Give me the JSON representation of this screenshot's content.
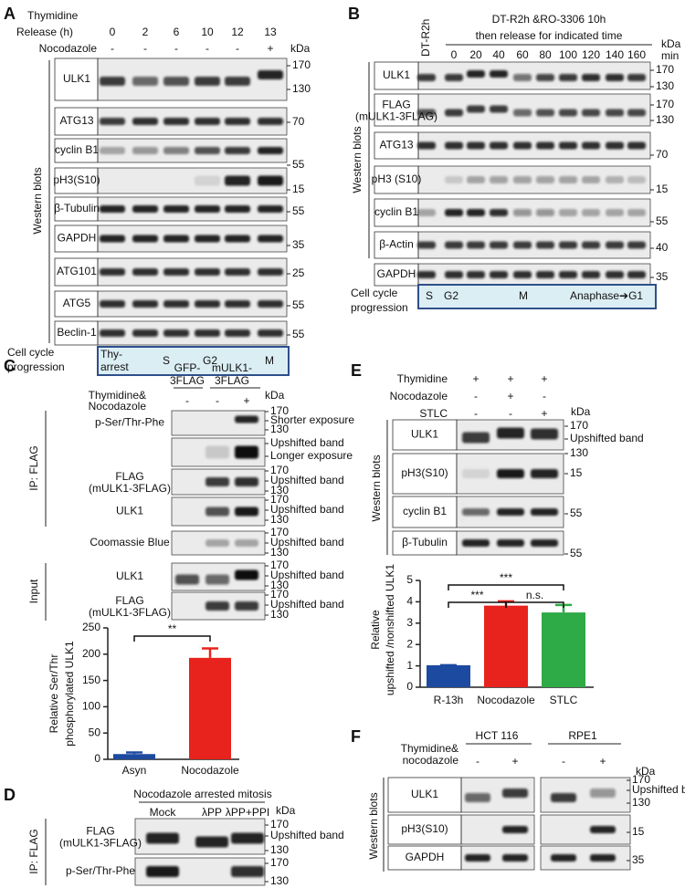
{
  "figure": {
    "A": {
      "letter": "A",
      "header": [
        "Thymidine",
        "Release (h)"
      ],
      "times": [
        "0",
        "2",
        "6",
        "10",
        "12",
        "13"
      ],
      "treatment": "Nocodazole",
      "marks": [
        "-",
        "-",
        "-",
        "-",
        "-",
        "+"
      ],
      "kda": "kDa",
      "side_title": "Western blots",
      "rows": [
        {
          "label": "ULK1",
          "side": [
            "170",
            "130"
          ]
        },
        {
          "label": "ATG13",
          "side": [
            "70"
          ]
        },
        {
          "label": "cyclin B1",
          "side": [
            "55"
          ]
        },
        {
          "label": "pH3(S10)",
          "side": [
            "15"
          ]
        },
        {
          "label": "β-Tubulin",
          "side": [
            "55"
          ]
        },
        {
          "label": "GAPDH",
          "side": [
            "35"
          ]
        },
        {
          "label": "ATG101",
          "side": [
            "25"
          ]
        },
        {
          "label": "ATG5",
          "side": [
            "55"
          ]
        },
        {
          "label": "Beclin-1",
          "side": [
            "55"
          ]
        }
      ],
      "progression": {
        "label": [
          "Cell cycle",
          "progression"
        ],
        "stages": [
          [
            "Thy-",
            "arrest"
          ],
          [
            "S"
          ],
          [
            "G2"
          ],
          [
            "M"
          ]
        ]
      }
    },
    "B": {
      "letter": "B",
      "control": "DT-R2h",
      "header": [
        "DT-R2h &RO-3306 10h",
        "then release for indicated time"
      ],
      "times": [
        "0",
        "20",
        "40",
        "60",
        "80",
        "100",
        "120",
        "140",
        "160"
      ],
      "unit": "min",
      "kda": "kDa",
      "side_title": "Western blots",
      "rows": [
        {
          "label": "ULK1",
          "side": [
            "170",
            "130"
          ]
        },
        {
          "label": "FLAG",
          "sublabel": "(mULK1-3FLAG)",
          "side": [
            "170",
            "130"
          ]
        },
        {
          "label": "ATG13",
          "side": [
            "70"
          ]
        },
        {
          "label": "pH3 (S10)",
          "side": [
            "15"
          ]
        },
        {
          "label": "cyclin B1",
          "side": [
            "55"
          ]
        },
        {
          "label": "β-Actin",
          "side": [
            "40"
          ]
        },
        {
          "label": "GAPDH",
          "side": [
            "35"
          ]
        }
      ],
      "progression": {
        "label": [
          "Cell cycle",
          "progression"
        ],
        "stages": [
          [
            "S"
          ],
          [
            "G2"
          ],
          [
            "M"
          ],
          [
            "Anaphase➔G1"
          ]
        ]
      }
    },
    "C": {
      "letter": "C",
      "groups": [
        [
          "GFP-",
          "3FLAG"
        ],
        [
          "mULK1-",
          "3FLAG"
        ]
      ],
      "treatment": [
        "Thymidine&",
        "Nocodazole"
      ],
      "marks": [
        "-",
        "-",
        "+"
      ],
      "kda": "kDa",
      "sections": [
        "IP: FLAG",
        "Input"
      ],
      "rows": [
        {
          "label": "p-Ser/Thr-Phe",
          "side": [
            "170",
            "Shorter exposure",
            "130"
          ]
        },
        {
          "side": [
            "Upshifted band",
            "Longer exposure"
          ]
        },
        {
          "label": "FLAG",
          "sublabel": "(mULK1-3FLAG)",
          "side": [
            "170",
            "Upshifted band",
            "130"
          ]
        },
        {
          "label": "ULK1",
          "side": [
            "170",
            "Upshifted band",
            "130"
          ]
        },
        {
          "label": "Coomassie Blue",
          "side": [
            "170",
            "Upshifted band",
            "130"
          ]
        },
        {
          "label": "ULK1",
          "side": [
            "170",
            "Upshifted band",
            "130"
          ]
        },
        {
          "label": "FLAG",
          "sublabel": "(mULK1-3FLAG)",
          "side": [
            "170",
            "Upshifted band",
            "130"
          ]
        }
      ]
    },
    "D": {
      "letter": "D",
      "header": "Nocodazole arrested mitosis",
      "lanes": [
        "Mock",
        "λPP",
        "λPP+PPI"
      ],
      "kda": "kDa",
      "section": "IP: FLAG",
      "rows": [
        {
          "label": "FLAG",
          "sublabel": "(mULK1-3FLAG)",
          "side": [
            "170",
            "Upshifted band",
            "130"
          ]
        },
        {
          "label": "p-Ser/Thr-Phe",
          "side": [
            "170",
            "130"
          ]
        }
      ]
    },
    "E": {
      "letter": "E",
      "treatments": [
        {
          "name": "Thymidine",
          "marks": [
            "+",
            "+",
            "+"
          ]
        },
        {
          "name": "Nocodazole",
          "marks": [
            "-",
            "+",
            "-"
          ]
        },
        {
          "name": "STLC",
          "marks": [
            "-",
            "-",
            "+"
          ]
        }
      ],
      "kda": "kDa",
      "side_title": "Western blots",
      "rows": [
        {
          "label": "ULK1",
          "side": [
            "170",
            "Upshifted band",
            "130"
          ]
        },
        {
          "label": "pH3(S10)",
          "side": [
            "15"
          ]
        },
        {
          "label": "cyclin B1",
          "side": [
            "55"
          ]
        },
        {
          "label": "β-Tubulin",
          "side": [
            "55"
          ]
        }
      ]
    },
    "F": {
      "letter": "F",
      "groups": [
        "HCT 116",
        "RPE1"
      ],
      "treatment": [
        "Thymidine&",
        "nocodazole"
      ],
      "marks": [
        "-",
        "+",
        "-",
        "+"
      ],
      "kda": "kDa",
      "side_title": "Western blots",
      "rows": [
        {
          "label": "ULK1",
          "side": [
            "170",
            "Upshifted band",
            "130"
          ]
        },
        {
          "label": "pH3(S10)",
          "side": [
            "15"
          ]
        },
        {
          "label": "GAPDH",
          "side": [
            "35"
          ]
        }
      ]
    }
  },
  "chart_data": [
    {
      "type": "bar",
      "y_label": [
        "Relative Ser/Thr",
        "phosphorylated ULK1"
      ],
      "categories": [
        "Asyn",
        "Nocodazole"
      ],
      "values": [
        10,
        193
      ],
      "errors": [
        3,
        18
      ],
      "colors": [
        "#1c4aa0",
        "#e8221c"
      ],
      "ylim": [
        0,
        250
      ],
      "yticks": [
        0,
        50,
        100,
        150,
        200,
        250
      ],
      "annotations": [
        "**"
      ]
    },
    {
      "type": "bar",
      "y_label": [
        "Relative",
        "upshifted /nonshifted ULK1"
      ],
      "categories": [
        "R-13h",
        "Nocodazole",
        "STLC"
      ],
      "values": [
        1.03,
        3.82,
        3.5
      ],
      "errors": [
        0,
        0.2,
        0.35
      ],
      "colors": [
        "#1c4aa0",
        "#e8221c",
        "#2eaa46"
      ],
      "ylim": [
        0,
        5
      ],
      "yticks": [
        0,
        1,
        2,
        3,
        4,
        5
      ],
      "annotations": [
        "***",
        "n.s.",
        "***"
      ]
    }
  ]
}
